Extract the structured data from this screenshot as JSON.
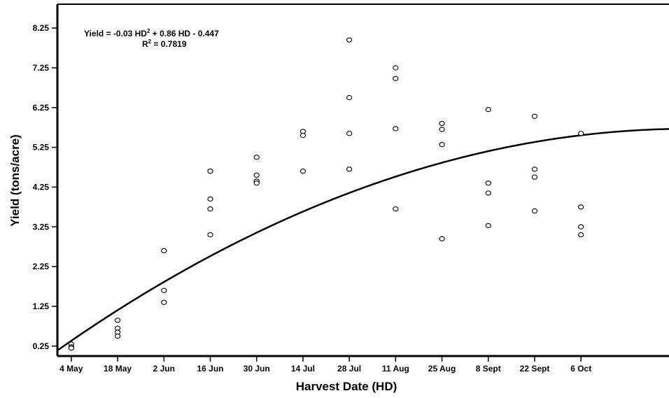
{
  "chart_data": {
    "type": "scatter",
    "title": "",
    "xlabel": "Harvest Date (HD)",
    "ylabel": "Yield (tons/acre)",
    "x_categories": [
      "4 May",
      "18 May",
      "2 Jun",
      "16 Jun",
      "30 Jun",
      "14 Jul",
      "28 Jul",
      "11 Aug",
      "25 Aug",
      "8 Sept",
      "22 Sept",
      "6 Oct"
    ],
    "y_ticks": [
      "0.25",
      "1.25",
      "2.25",
      "3.25",
      "4.25",
      "5.25",
      "6.25",
      "7.25",
      "8.25"
    ],
    "ylim": [
      0.0,
      8.85
    ],
    "xlim": [
      0.7,
      13.9
    ],
    "grid": false,
    "legend": "none",
    "annotation": {
      "line1_prefix": "Yield = -0.03 HD",
      "line1_sup": "2",
      "line1_suffix": " + 0.86 HD - 0.447",
      "line2_prefix": "R",
      "line2_sup": "2",
      "line2_suffix": " = 0.7819"
    },
    "series": [
      {
        "type": "scatter",
        "points": [
          [
            1,
            0.3
          ],
          [
            1,
            0.23
          ],
          [
            1,
            0.2
          ],
          [
            2,
            0.9
          ],
          [
            2,
            0.7
          ],
          [
            2,
            0.6
          ],
          [
            2,
            0.5
          ],
          [
            3,
            2.65
          ],
          [
            3,
            1.65
          ],
          [
            3,
            1.35
          ],
          [
            4,
            4.65
          ],
          [
            4,
            3.95
          ],
          [
            4,
            3.7
          ],
          [
            4,
            3.05
          ],
          [
            5,
            5.0
          ],
          [
            5,
            4.55
          ],
          [
            5,
            4.4
          ],
          [
            5,
            4.35
          ],
          [
            6,
            5.65
          ],
          [
            6,
            5.55
          ],
          [
            6,
            4.65
          ],
          [
            7,
            7.95
          ],
          [
            7,
            6.5
          ],
          [
            7,
            5.6
          ],
          [
            7,
            4.7
          ],
          [
            8,
            7.25
          ],
          [
            8,
            6.98
          ],
          [
            8,
            5.72
          ],
          [
            8,
            3.7
          ],
          [
            9,
            5.85
          ],
          [
            9,
            5.7
          ],
          [
            9,
            5.32
          ],
          [
            9,
            2.95
          ],
          [
            10,
            6.2
          ],
          [
            10,
            4.35
          ],
          [
            10,
            4.1
          ],
          [
            10,
            3.28
          ],
          [
            11,
            6.03
          ],
          [
            11,
            4.7
          ],
          [
            11,
            4.5
          ],
          [
            11,
            3.65
          ],
          [
            12,
            5.6
          ],
          [
            12,
            3.75
          ],
          [
            12,
            3.25
          ],
          [
            12,
            3.05
          ]
        ]
      },
      {
        "type": "line",
        "name": "",
        "formula": {
          "a": -0.03,
          "b": 0.86,
          "c": -0.447
        }
      }
    ]
  }
}
